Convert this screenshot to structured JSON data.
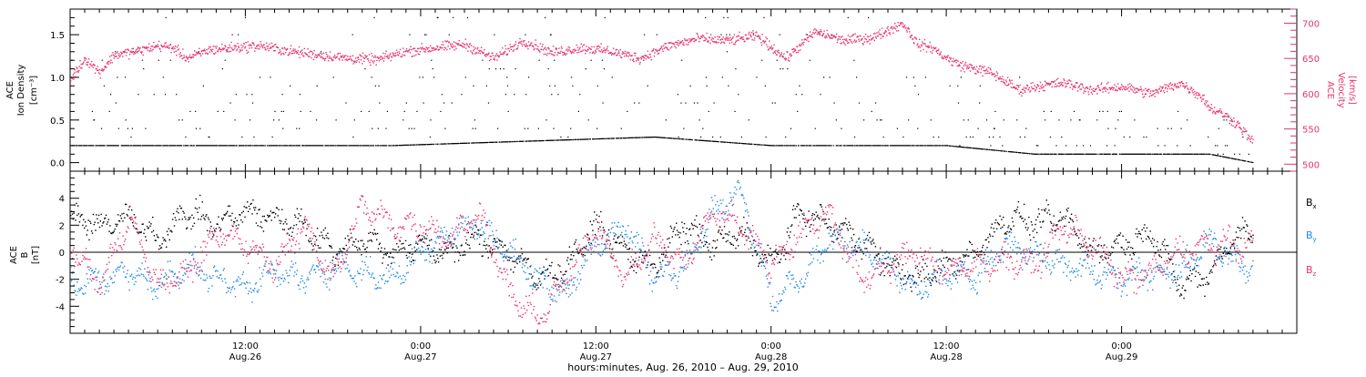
{
  "chart_data": [
    {
      "type": "scatter",
      "panel": "top",
      "ylabel": [
        "ACE",
        "Ion Density",
        "[cm⁻³]"
      ],
      "ylabel_right": [
        "ACE",
        "Velocity",
        "[km/s]"
      ],
      "ylim": [
        -0.1,
        1.8
      ],
      "ylim_right": [
        490,
        720
      ],
      "yticks": [
        0.0,
        0.5,
        1.0,
        1.5
      ],
      "yticks_right": [
        500,
        550,
        600,
        650,
        700
      ],
      "xlim_hours": [
        0,
        84
      ],
      "series": [
        {
          "name": "",
          "axis": "left",
          "color": "#000000",
          "description": "ion density, quantized horizontal bands",
          "levels": [
            0.1,
            0.2,
            0.3,
            0.4,
            0.5,
            0.6,
            0.7,
            0.8,
            0.9,
            1.0,
            1.1,
            1.2,
            1.3,
            1.5,
            1.7
          ],
          "baseline_profile": {
            "x": [
              0,
              18,
              22,
              40,
              48,
              55,
              60,
              66,
              70,
              74,
              78,
              81
            ],
            "y": [
              0.2,
              0.2,
              0.2,
              0.3,
              0.2,
              0.2,
              0.2,
              0.1,
              0.1,
              0.1,
              0.1,
              0.0
            ]
          }
        },
        {
          "name": "",
          "axis": "right",
          "color": "#e8336b",
          "description": "solar wind velocity",
          "x": [
            0,
            1,
            2,
            3,
            4.5,
            6,
            7,
            8,
            9.5,
            11,
            13,
            15,
            17,
            19,
            21,
            23,
            25,
            27,
            29,
            31,
            33,
            35,
            37,
            39,
            41,
            43,
            45,
            47,
            49,
            51,
            53,
            55,
            57,
            58,
            59,
            60,
            61,
            63,
            65,
            66,
            68,
            70,
            72,
            74,
            76,
            77.5,
            78,
            79,
            80,
            81
          ],
          "y": [
            620,
            650,
            630,
            655,
            660,
            668,
            665,
            650,
            662,
            665,
            668,
            660,
            655,
            650,
            648,
            660,
            665,
            670,
            650,
            675,
            658,
            665,
            660,
            650,
            668,
            678,
            675,
            682,
            650,
            688,
            675,
            680,
            700,
            670,
            665,
            650,
            640,
            630,
            605,
            610,
            615,
            605,
            610,
            600,
            615,
            595,
            580,
            570,
            555,
            530
          ]
        }
      ]
    },
    {
      "type": "scatter",
      "panel": "bottom",
      "ylabel": [
        "ACE",
        "B",
        "[nT]"
      ],
      "ylim": [
        -6,
        6
      ],
      "yticks": [
        -4,
        -2,
        0,
        2,
        4
      ],
      "xlim_hours": [
        0,
        84
      ],
      "series": [
        {
          "name": "Bx",
          "color": "#000000",
          "x": [
            0,
            2,
            4,
            6,
            8,
            10,
            12,
            14,
            16,
            18,
            20,
            22,
            24,
            26,
            28,
            30,
            32,
            34,
            36,
            38,
            40,
            42,
            44,
            46,
            48,
            50,
            52,
            54,
            56,
            58,
            60,
            62,
            64,
            66,
            68,
            70,
            72,
            74,
            76,
            78,
            80
          ],
          "y": [
            2.5,
            2,
            2.5,
            1,
            3,
            2,
            3,
            2.5,
            2,
            0,
            1,
            0,
            0.5,
            0,
            1,
            0,
            -2,
            -1,
            2,
            0,
            -1,
            2,
            0.5,
            1.5,
            -1,
            3,
            2,
            1,
            -1,
            -2,
            -1,
            0,
            2.5,
            2.2,
            2.5,
            0,
            0.5,
            1.5,
            -2.5,
            -1.5,
            1.5
          ]
        },
        {
          "name": "By",
          "color": "#1e88e5",
          "x": [
            0,
            2,
            4,
            6,
            8,
            10,
            12,
            14,
            16,
            18,
            20,
            22,
            24,
            26,
            28,
            30,
            32,
            34,
            36,
            38,
            40,
            42,
            44,
            46,
            48,
            50,
            52,
            54,
            56,
            58,
            60,
            62,
            64,
            66,
            68,
            70,
            72,
            74,
            76,
            78,
            80
          ],
          "y": [
            -2.5,
            -2,
            -1.5,
            -2.5,
            -1,
            -2,
            -2.5,
            -1.5,
            -2,
            -1,
            -1.5,
            -2,
            0,
            1.5,
            2,
            0,
            -2,
            -3,
            0.5,
            2,
            -2,
            -1,
            3,
            4.5,
            -3.5,
            -2,
            1,
            0.5,
            -1,
            -3,
            -1.5,
            -2,
            0.5,
            0,
            -1,
            -1.5,
            -2,
            -1.5,
            -1.5,
            1,
            -1
          ]
        },
        {
          "name": "Bz",
          "color": "#e8336b",
          "x": [
            0,
            2,
            4,
            6,
            8,
            10,
            12,
            14,
            16,
            18,
            20,
            22,
            24,
            26,
            28,
            30,
            32,
            34,
            36,
            38,
            40,
            42,
            44,
            46,
            48,
            50,
            52,
            54,
            56,
            58,
            60,
            62,
            64,
            66,
            68,
            70,
            72,
            74,
            76,
            78,
            80
          ],
          "y": [
            0.5,
            -2.5,
            2.5,
            -2.5,
            -1.5,
            1.5,
            0.5,
            -1,
            2,
            -2,
            3.5,
            2,
            2,
            1,
            3,
            -3,
            -5,
            -2,
            2,
            -2,
            1,
            -1,
            3,
            2,
            -1,
            1.5,
            3,
            -2,
            -1,
            0,
            -1.5,
            -1,
            -0.5,
            -1,
            2,
            0.5,
            -2,
            -1.5,
            0,
            0.5,
            0.5
          ]
        }
      ],
      "legend_labels": [
        "B",
        "B",
        "B"
      ],
      "legend_subscripts": [
        "x",
        "y",
        "z"
      ],
      "legend_position": "right"
    }
  ],
  "xaxis": {
    "ticks": [
      {
        "hour": 12,
        "time": "12:00",
        "date": "Aug.26"
      },
      {
        "hour": 24,
        "time": "0:00",
        "date": "Aug.27"
      },
      {
        "hour": 36,
        "time": "12:00",
        "date": "Aug.27"
      },
      {
        "hour": 48,
        "time": "0:00",
        "date": "Aug.28"
      },
      {
        "hour": 60,
        "time": "12:00",
        "date": "Aug.28"
      },
      {
        "hour": 72,
        "time": "0:00",
        "date": "Aug.29"
      }
    ],
    "title": "hours:minutes, Aug. 26, 2010 – Aug. 29, 2010"
  },
  "colors": {
    "velocity": "#e8336b",
    "density": "#000000",
    "bx": "#000000",
    "by": "#1e88e5",
    "bz": "#e8336b",
    "zero_line_bottom": "#1e88e5"
  }
}
